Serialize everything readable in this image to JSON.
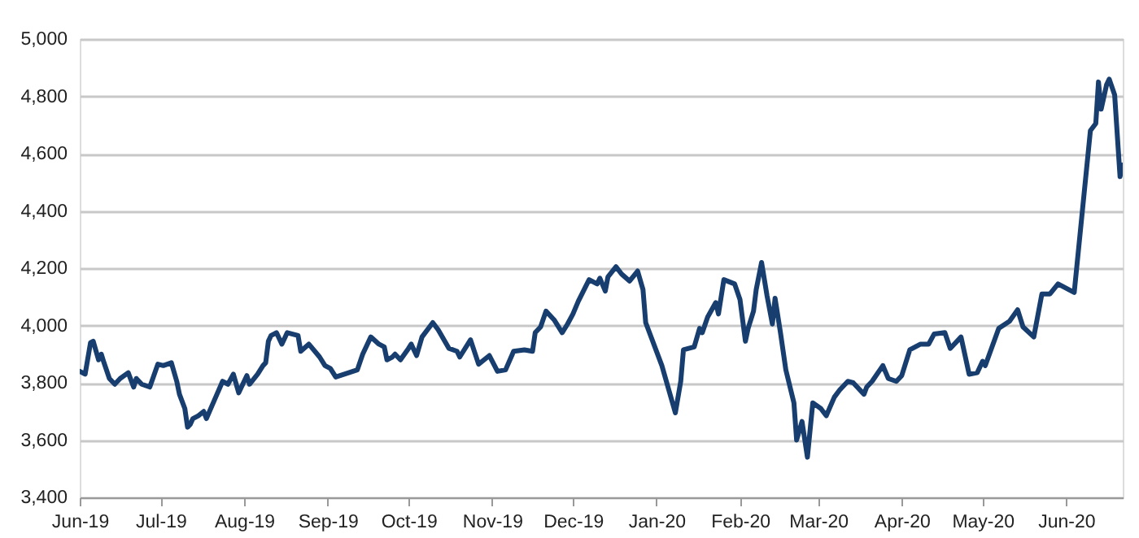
{
  "chart_data": {
    "type": "line",
    "x": [
      "2019-06-01",
      "2019-06-03",
      "2019-06-05",
      "2019-06-06",
      "2019-06-08",
      "2019-06-09",
      "2019-06-10",
      "2019-06-12",
      "2019-06-14",
      "2019-06-16",
      "2019-06-19",
      "2019-06-21",
      "2019-06-22",
      "2019-06-24",
      "2019-06-27",
      "2019-06-30",
      "2019-07-02",
      "2019-07-05",
      "2019-07-07",
      "2019-07-08",
      "2019-07-10",
      "2019-07-11",
      "2019-07-12",
      "2019-07-13",
      "2019-07-15",
      "2019-07-17",
      "2019-07-18",
      "2019-07-21",
      "2019-07-24",
      "2019-07-26",
      "2019-07-28",
      "2019-07-30",
      "2019-08-02",
      "2019-08-03",
      "2019-08-06",
      "2019-08-08",
      "2019-08-09",
      "2019-08-10",
      "2019-08-11",
      "2019-08-13",
      "2019-08-15",
      "2019-08-17",
      "2019-08-21",
      "2019-08-22",
      "2019-08-25",
      "2019-08-29",
      "2019-08-31",
      "2019-09-02",
      "2019-09-04",
      "2019-09-12",
      "2019-09-14",
      "2019-09-17",
      "2019-09-20",
      "2019-09-22",
      "2019-09-23",
      "2019-09-25",
      "2019-09-26",
      "2019-09-28",
      "2019-10-01",
      "2019-10-02",
      "2019-10-04",
      "2019-10-06",
      "2019-10-10",
      "2019-10-12",
      "2019-10-16",
      "2019-10-19",
      "2019-10-20",
      "2019-10-24",
      "2019-10-27",
      "2019-10-31",
      "2019-11-03",
      "2019-11-06",
      "2019-11-09",
      "2019-11-13",
      "2019-11-16",
      "2019-11-17",
      "2019-11-19",
      "2019-11-21",
      "2019-11-24",
      "2019-11-27",
      "2019-11-29",
      "2019-12-01",
      "2019-12-03",
      "2019-12-07",
      "2019-12-10",
      "2019-12-11",
      "2019-12-13",
      "2019-12-14",
      "2019-12-17",
      "2019-12-19",
      "2019-12-22",
      "2019-12-25",
      "2019-12-27",
      "2019-12-28",
      "2020-01-03",
      "2020-01-08",
      "2020-01-10",
      "2020-01-11",
      "2020-01-15",
      "2020-01-17",
      "2020-01-18",
      "2020-01-20",
      "2020-01-23",
      "2020-01-24",
      "2020-01-26",
      "2020-01-30",
      "2020-02-01",
      "2020-02-03",
      "2020-02-04",
      "2020-02-06",
      "2020-02-07",
      "2020-02-09",
      "2020-02-11",
      "2020-02-13",
      "2020-02-14",
      "2020-02-16",
      "2020-02-18",
      "2020-02-21",
      "2020-02-22",
      "2020-02-24",
      "2020-02-26",
      "2020-02-28",
      "2020-03-02",
      "2020-03-04",
      "2020-03-07",
      "2020-03-09",
      "2020-03-12",
      "2020-03-14",
      "2020-03-18",
      "2020-03-19",
      "2020-03-21",
      "2020-03-25",
      "2020-03-27",
      "2020-03-30",
      "2020-04-01",
      "2020-04-04",
      "2020-04-08",
      "2020-04-11",
      "2020-04-13",
      "2020-04-17",
      "2020-04-19",
      "2020-04-23",
      "2020-04-26",
      "2020-04-29",
      "2020-05-01",
      "2020-05-02",
      "2020-05-07",
      "2020-05-11",
      "2020-05-14",
      "2020-05-16",
      "2020-05-20",
      "2020-05-23",
      "2020-05-26",
      "2020-05-29",
      "2020-06-04",
      "2020-06-10",
      "2020-06-12",
      "2020-06-13",
      "2020-06-14",
      "2020-06-16",
      "2020-06-17",
      "2020-06-19",
      "2020-06-21",
      "2020-06-22"
    ],
    "series": [
      {
        "color": "#173e6e",
        "values": [
          3840,
          3830,
          3940,
          3945,
          3880,
          3900,
          3870,
          3815,
          3795,
          3815,
          3835,
          3785,
          3815,
          3795,
          3785,
          3865,
          3860,
          3870,
          3805,
          3760,
          3710,
          3645,
          3655,
          3675,
          3685,
          3700,
          3675,
          3740,
          3805,
          3795,
          3830,
          3765,
          3825,
          3795,
          3830,
          3860,
          3870,
          3945,
          3965,
          3975,
          3935,
          3975,
          3965,
          3910,
          3935,
          3890,
          3860,
          3850,
          3820,
          3845,
          3900,
          3960,
          3935,
          3925,
          3880,
          3890,
          3900,
          3880,
          3920,
          3935,
          3895,
          3960,
          4010,
          3985,
          3920,
          3910,
          3890,
          3950,
          3865,
          3895,
          3840,
          3845,
          3910,
          3915,
          3910,
          3975,
          3995,
          4050,
          4020,
          3975,
          4005,
          4040,
          4085,
          4160,
          4145,
          4165,
          4120,
          4170,
          4205,
          4180,
          4155,
          4190,
          4125,
          4010,
          3860,
          3695,
          3805,
          3915,
          3925,
          3990,
          3975,
          4030,
          4080,
          4040,
          4160,
          4145,
          4090,
          3945,
          3990,
          4050,
          4125,
          4220,
          4105,
          4005,
          4095,
          3975,
          3845,
          3730,
          3600,
          3665,
          3540,
          3730,
          3710,
          3685,
          3750,
          3775,
          3805,
          3800,
          3760,
          3785,
          3805,
          3860,
          3815,
          3805,
          3825,
          3915,
          3935,
          3935,
          3970,
          3975,
          3920,
          3960,
          3830,
          3835,
          3875,
          3860,
          3990,
          4015,
          4055,
          3995,
          3960,
          4110,
          4110,
          4145,
          4115,
          4680,
          4705,
          4850,
          4755,
          4840,
          4860,
          4805,
          4520,
          4560
        ]
      }
    ],
    "xlim": [
      "2019-06-01",
      "2020-06-22"
    ],
    "xticks": [
      {
        "value": "2019-06-01",
        "label": "Jun-19"
      },
      {
        "value": "2019-07-01",
        "label": "Jul-19"
      },
      {
        "value": "2019-08-01",
        "label": "Aug-19"
      },
      {
        "value": "2019-09-01",
        "label": "Sep-19"
      },
      {
        "value": "2019-10-01",
        "label": "Oct-19"
      },
      {
        "value": "2019-11-01",
        "label": "Nov-19"
      },
      {
        "value": "2019-12-01",
        "label": "Dec-19"
      },
      {
        "value": "2020-01-01",
        "label": "Jan-20"
      },
      {
        "value": "2020-02-01",
        "label": "Feb-20"
      },
      {
        "value": "2020-03-01",
        "label": "Mar-20"
      },
      {
        "value": "2020-04-01",
        "label": "Apr-20"
      },
      {
        "value": "2020-05-01",
        "label": "May-20"
      },
      {
        "value": "2020-06-01",
        "label": "Jun-20"
      }
    ],
    "ylim": [
      3400,
      5000
    ],
    "yticks": [
      {
        "value": 3400,
        "label": "3,400"
      },
      {
        "value": 3600,
        "label": "3,600"
      },
      {
        "value": 3800,
        "label": "3,800"
      },
      {
        "value": 4000,
        "label": "4,000"
      },
      {
        "value": 4200,
        "label": "4,200"
      },
      {
        "value": 4400,
        "label": "4,400"
      },
      {
        "value": 4600,
        "label": "4,600"
      },
      {
        "value": 4800,
        "label": "4,800"
      },
      {
        "value": 5000,
        "label": "5,000"
      }
    ],
    "grid": "y",
    "marker": "none",
    "line_style": "solid"
  }
}
